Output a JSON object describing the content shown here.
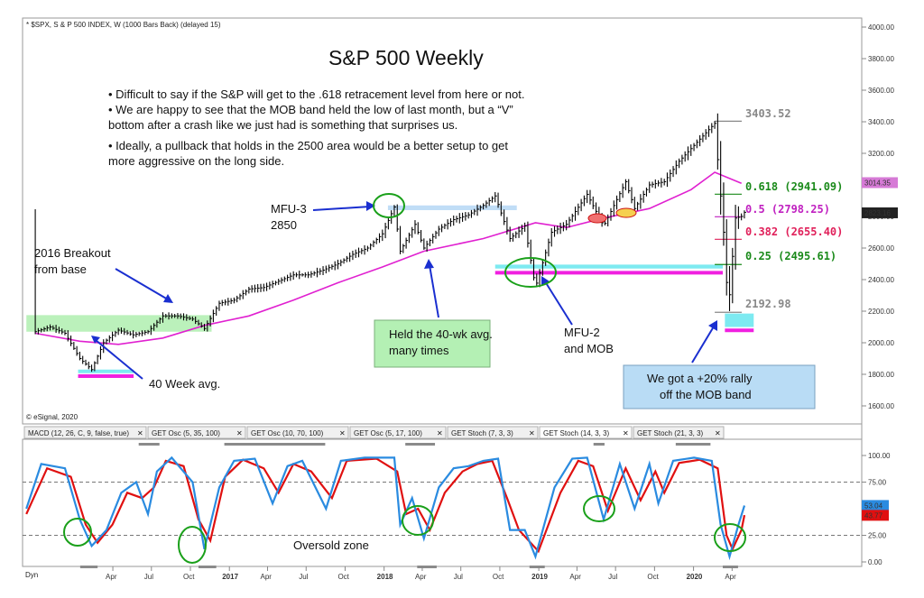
{
  "header": {
    "symbol_line": "* $SPX, S & P 500 INDEX, W (1000 Bars Back) (delayed 15)",
    "copyright": "© eSignal, 2020",
    "dyn_label": "Dyn"
  },
  "chart_data": [
    {
      "type": "line",
      "title": "S&P 500 Weekly",
      "series_kind": "weekly price bars (approximate path)",
      "x_range": [
        "2015-09",
        "2020-05"
      ],
      "ylim": [
        1600,
        4000
      ],
      "y_ticks": [
        "4000.00",
        "3800.00",
        "3600.00",
        "3400.00",
        "3200.00",
        "3000.00",
        "2800.00",
        "2600.00",
        "2400.00",
        "2200.00",
        "2000.00",
        "1800.00",
        "1600.00"
      ],
      "price_path": [
        {
          "x": "2015-10-01",
          "y": 2070
        },
        {
          "x": "2015-11-05",
          "y": 2100
        },
        {
          "x": "2015-12-10",
          "y": 2060
        },
        {
          "x": "2016-01-14",
          "y": 1900
        },
        {
          "x": "2016-02-11",
          "y": 1830
        },
        {
          "x": "2016-03-10",
          "y": 2000
        },
        {
          "x": "2016-04-14",
          "y": 2080
        },
        {
          "x": "2016-05-19",
          "y": 2050
        },
        {
          "x": "2016-06-23",
          "y": 2070
        },
        {
          "x": "2016-07-28",
          "y": 2170
        },
        {
          "x": "2016-09-01",
          "y": 2170
        },
        {
          "x": "2016-10-06",
          "y": 2150
        },
        {
          "x": "2016-11-03",
          "y": 2090
        },
        {
          "x": "2016-12-08",
          "y": 2250
        },
        {
          "x": "2017-01-12",
          "y": 2270
        },
        {
          "x": "2017-02-16",
          "y": 2340
        },
        {
          "x": "2017-03-23",
          "y": 2350
        },
        {
          "x": "2017-04-27",
          "y": 2390
        },
        {
          "x": "2017-06-01",
          "y": 2430
        },
        {
          "x": "2017-07-06",
          "y": 2430
        },
        {
          "x": "2017-08-10",
          "y": 2460
        },
        {
          "x": "2017-09-14",
          "y": 2500
        },
        {
          "x": "2017-10-19",
          "y": 2560
        },
        {
          "x": "2017-11-23",
          "y": 2600
        },
        {
          "x": "2017-12-28",
          "y": 2690
        },
        {
          "x": "2018-01-25",
          "y": 2860
        },
        {
          "x": "2018-02-08",
          "y": 2580
        },
        {
          "x": "2018-03-15",
          "y": 2750
        },
        {
          "x": "2018-04-05",
          "y": 2600
        },
        {
          "x": "2018-05-10",
          "y": 2720
        },
        {
          "x": "2018-06-14",
          "y": 2780
        },
        {
          "x": "2018-07-19",
          "y": 2810
        },
        {
          "x": "2018-08-23",
          "y": 2870
        },
        {
          "x": "2018-09-20",
          "y": 2930
        },
        {
          "x": "2018-10-25",
          "y": 2660
        },
        {
          "x": "2018-11-29",
          "y": 2740
        },
        {
          "x": "2018-12-24",
          "y": 2350
        },
        {
          "x": "2019-01-31",
          "y": 2700
        },
        {
          "x": "2019-03-07",
          "y": 2750
        },
        {
          "x": "2019-04-25",
          "y": 2940
        },
        {
          "x": "2019-06-03",
          "y": 2740
        },
        {
          "x": "2019-07-25",
          "y": 3020
        },
        {
          "x": "2019-08-15",
          "y": 2850
        },
        {
          "x": "2019-09-19",
          "y": 3000
        },
        {
          "x": "2019-10-24",
          "y": 3020
        },
        {
          "x": "2019-11-28",
          "y": 3150
        },
        {
          "x": "2020-01-02",
          "y": 3250
        },
        {
          "x": "2020-02-20",
          "y": 3390
        },
        {
          "x": "2020-03-12",
          "y": 2700
        },
        {
          "x": "2020-03-23",
          "y": 2200
        },
        {
          "x": "2020-04-09",
          "y": 2790
        },
        {
          "x": "2020-04-23",
          "y": 2800
        },
        {
          "x": "2020-05-01",
          "y": 2830
        }
      ],
      "ma_40_week": [
        {
          "x": "2015-10-01",
          "y": 2060
        },
        {
          "x": "2016-01-14",
          "y": 2010
        },
        {
          "x": "2016-04-14",
          "y": 1990
        },
        {
          "x": "2016-07-28",
          "y": 2030
        },
        {
          "x": "2016-11-03",
          "y": 2110
        },
        {
          "x": "2017-02-16",
          "y": 2170
        },
        {
          "x": "2017-06-01",
          "y": 2270
        },
        {
          "x": "2017-09-14",
          "y": 2380
        },
        {
          "x": "2017-12-28",
          "y": 2480
        },
        {
          "x": "2018-04-05",
          "y": 2580
        },
        {
          "x": "2018-08-23",
          "y": 2660
        },
        {
          "x": "2018-12-24",
          "y": 2760
        },
        {
          "x": "2019-03-07",
          "y": 2730
        },
        {
          "x": "2019-06-03",
          "y": 2790
        },
        {
          "x": "2019-09-19",
          "y": 2850
        },
        {
          "x": "2019-12-26",
          "y": 2970
        },
        {
          "x": "2020-02-20",
          "y": 3080
        },
        {
          "x": "2020-04-23",
          "y": 3010
        }
      ],
      "levels": {
        "high": "3403.52",
        "fib_618": "0.618 (2941.09)",
        "fib_5": "0.5 (2798.25)",
        "fib_382": "0.382 (2655.40)",
        "fib_25": "0.25 (2495.61)",
        "low": "2192.98",
        "ma_tag": "3014.35",
        "last_tag": "2823.16"
      },
      "fib_values": {
        "high": 3403.52,
        "f618": 2941.09,
        "f5": 2798.25,
        "f382": 2655.4,
        "f25": 2495.61,
        "low": 2192.98,
        "ma": 3014.35,
        "last": 2823.16
      },
      "bands": [
        {
          "role": "breakout_band",
          "from": "2015-09-10",
          "to": "2016-11-20",
          "y_low": 2070,
          "y_high": 2175,
          "color": "#b4f0b4"
        },
        {
          "role": "mob_2016",
          "from": "2016-01-10",
          "to": "2016-05-20",
          "y_low": 1810,
          "y_high": 1830,
          "color": "#6fe8f0"
        },
        {
          "role": "mob_2018",
          "from": "2018-09-20",
          "to": "2020-03-10",
          "y_low": 2470,
          "y_high": 2495,
          "color": "#6fe8f0"
        },
        {
          "role": "mob_2020",
          "from": "2020-03-15",
          "to": "2020-05-22",
          "y_low": 2100,
          "y_high": 2185,
          "color": "#6fe8f0"
        },
        {
          "role": "top_2018",
          "from": "2018-01-10",
          "to": "2018-11-10",
          "y_low": 2840,
          "y_high": 2870,
          "color": "#b9d9f5"
        }
      ],
      "colors": {
        "price": "#000000",
        "ma": "#e020d0",
        "fib_618": "#1a8a1a",
        "fib_5": "#c020c0",
        "fib_382": "#e0205a",
        "fib_25": "#1a8a1a",
        "level_gray": "#888888",
        "mob_band": "#5fe3ee",
        "mob_magenta": "#f020e0"
      }
    },
    {
      "type": "line",
      "title": "",
      "ylim": [
        0,
        100
      ],
      "y_ticks": [
        "100.00",
        "75.00",
        "25.00",
        "0.00"
      ],
      "last_values": [
        "53.04",
        "43.77"
      ],
      "x_labels": [
        "Apr",
        "Jul",
        "Oct",
        "2017",
        "Apr",
        "Jul",
        "Oct",
        "2018",
        "Apr",
        "Jul",
        "Oct",
        "2019",
        "Apr",
        "Jul",
        "Oct",
        "2020",
        "Apr"
      ],
      "k_line": [
        {
          "x": "2015-09-10",
          "y": 50
        },
        {
          "x": "2015-10-15",
          "y": 92
        },
        {
          "x": "2015-12-10",
          "y": 88
        },
        {
          "x": "2016-01-14",
          "y": 40
        },
        {
          "x": "2016-02-11",
          "y": 15
        },
        {
          "x": "2016-03-17",
          "y": 30
        },
        {
          "x": "2016-04-21",
          "y": 65
        },
        {
          "x": "2016-05-26",
          "y": 75
        },
        {
          "x": "2016-06-23",
          "y": 45
        },
        {
          "x": "2016-07-14",
          "y": 85
        },
        {
          "x": "2016-08-18",
          "y": 98
        },
        {
          "x": "2016-10-06",
          "y": 75
        },
        {
          "x": "2016-11-03",
          "y": 12
        },
        {
          "x": "2016-12-08",
          "y": 70
        },
        {
          "x": "2017-01-12",
          "y": 95
        },
        {
          "x": "2017-03-02",
          "y": 97
        },
        {
          "x": "2017-04-13",
          "y": 55
        },
        {
          "x": "2017-05-18",
          "y": 90
        },
        {
          "x": "2017-06-22",
          "y": 95
        },
        {
          "x": "2017-08-17",
          "y": 50
        },
        {
          "x": "2017-09-21",
          "y": 95
        },
        {
          "x": "2017-11-16",
          "y": 98
        },
        {
          "x": "2018-01-25",
          "y": 98
        },
        {
          "x": "2018-02-08",
          "y": 35
        },
        {
          "x": "2018-03-08",
          "y": 60
        },
        {
          "x": "2018-04-05",
          "y": 22
        },
        {
          "x": "2018-05-10",
          "y": 70
        },
        {
          "x": "2018-06-14",
          "y": 88
        },
        {
          "x": "2018-07-19",
          "y": 90
        },
        {
          "x": "2018-08-23",
          "y": 95
        },
        {
          "x": "2018-09-27",
          "y": 97
        },
        {
          "x": "2018-10-25",
          "y": 30
        },
        {
          "x": "2018-11-29",
          "y": 30
        },
        {
          "x": "2018-12-24",
          "y": 5
        },
        {
          "x": "2019-02-07",
          "y": 70
        },
        {
          "x": "2019-03-21",
          "y": 97
        },
        {
          "x": "2019-04-25",
          "y": 98
        },
        {
          "x": "2019-06-03",
          "y": 40
        },
        {
          "x": "2019-07-11",
          "y": 92
        },
        {
          "x": "2019-08-15",
          "y": 50
        },
        {
          "x": "2019-09-19",
          "y": 92
        },
        {
          "x": "2019-10-10",
          "y": 55
        },
        {
          "x": "2019-11-14",
          "y": 95
        },
        {
          "x": "2020-01-02",
          "y": 98
        },
        {
          "x": "2020-02-13",
          "y": 95
        },
        {
          "x": "2020-03-05",
          "y": 35
        },
        {
          "x": "2020-03-26",
          "y": 5
        },
        {
          "x": "2020-04-16",
          "y": 35
        },
        {
          "x": "2020-04-30",
          "y": 53
        }
      ],
      "d_line": [
        {
          "x": "2015-09-10",
          "y": 45
        },
        {
          "x": "2015-10-29",
          "y": 88
        },
        {
          "x": "2015-12-24",
          "y": 80
        },
        {
          "x": "2016-01-28",
          "y": 35
        },
        {
          "x": "2016-02-25",
          "y": 18
        },
        {
          "x": "2016-03-31",
          "y": 35
        },
        {
          "x": "2016-05-05",
          "y": 65
        },
        {
          "x": "2016-06-09",
          "y": 60
        },
        {
          "x": "2016-07-07",
          "y": 70
        },
        {
          "x": "2016-08-04",
          "y": 95
        },
        {
          "x": "2016-09-15",
          "y": 90
        },
        {
          "x": "2016-10-20",
          "y": 40
        },
        {
          "x": "2016-11-17",
          "y": 20
        },
        {
          "x": "2016-12-22",
          "y": 80
        },
        {
          "x": "2017-02-02",
          "y": 96
        },
        {
          "x": "2017-03-23",
          "y": 88
        },
        {
          "x": "2017-04-27",
          "y": 65
        },
        {
          "x": "2017-06-01",
          "y": 92
        },
        {
          "x": "2017-07-13",
          "y": 85
        },
        {
          "x": "2017-08-31",
          "y": 60
        },
        {
          "x": "2017-10-05",
          "y": 95
        },
        {
          "x": "2017-12-14",
          "y": 97
        },
        {
          "x": "2018-02-01",
          "y": 85
        },
        {
          "x": "2018-02-22",
          "y": 45
        },
        {
          "x": "2018-03-22",
          "y": 50
        },
        {
          "x": "2018-04-19",
          "y": 30
        },
        {
          "x": "2018-05-24",
          "y": 65
        },
        {
          "x": "2018-07-05",
          "y": 85
        },
        {
          "x": "2018-08-09",
          "y": 92
        },
        {
          "x": "2018-09-13",
          "y": 95
        },
        {
          "x": "2018-10-18",
          "y": 60
        },
        {
          "x": "2018-11-15",
          "y": 30
        },
        {
          "x": "2018-12-31",
          "y": 10
        },
        {
          "x": "2019-02-21",
          "y": 65
        },
        {
          "x": "2019-04-04",
          "y": 95
        },
        {
          "x": "2019-05-09",
          "y": 90
        },
        {
          "x": "2019-06-13",
          "y": 48
        },
        {
          "x": "2019-07-25",
          "y": 88
        },
        {
          "x": "2019-08-29",
          "y": 58
        },
        {
          "x": "2019-10-03",
          "y": 85
        },
        {
          "x": "2019-10-24",
          "y": 65
        },
        {
          "x": "2019-11-28",
          "y": 93
        },
        {
          "x": "2020-01-16",
          "y": 96
        },
        {
          "x": "2020-02-27",
          "y": 88
        },
        {
          "x": "2020-03-19",
          "y": 25
        },
        {
          "x": "2020-04-02",
          "y": 12
        },
        {
          "x": "2020-04-23",
          "y": 30
        },
        {
          "x": "2020-04-30",
          "y": 44
        }
      ],
      "colors": {
        "k": "#2a8be0",
        "d": "#e01010"
      }
    }
  ],
  "annotations": {
    "bullets": [
      "• Difficult to say if the S&P will get to the .618 retracement level from here or not.",
      "• We are happy to see that the MOB band held the low of last month, but a “V”",
      "   bottom after a crash like we just had is something that surprises us.",
      "• Ideally, a pullback that holds in the 2500 area would be a better setup to get",
      "   more aggressive on the long side."
    ],
    "mfu3": [
      "MFU-3",
      "2850"
    ],
    "breakout": [
      "2016 Breakout",
      "from base"
    ],
    "ma40": "40 Week avg.",
    "held": [
      "Held the 40-wk avg.",
      "many times"
    ],
    "mfu2": [
      "MFU-2",
      "and MOB"
    ],
    "rally": [
      "We got a +20% rally",
      "off the MOB band"
    ],
    "oversold": "Oversold zone"
  },
  "indicator_tabs": [
    "MACD (12, 26, C, 9, false, true)",
    "GET Osc (5, 35, 100)",
    "GET Osc (10, 70, 100)",
    "GET Osc (5, 17, 100)",
    "GET Stoch (7, 3, 3)",
    "GET Stoch (14, 3, 3)",
    "GET Stoch (21, 3, 3)"
  ],
  "close_glyph": "✕"
}
